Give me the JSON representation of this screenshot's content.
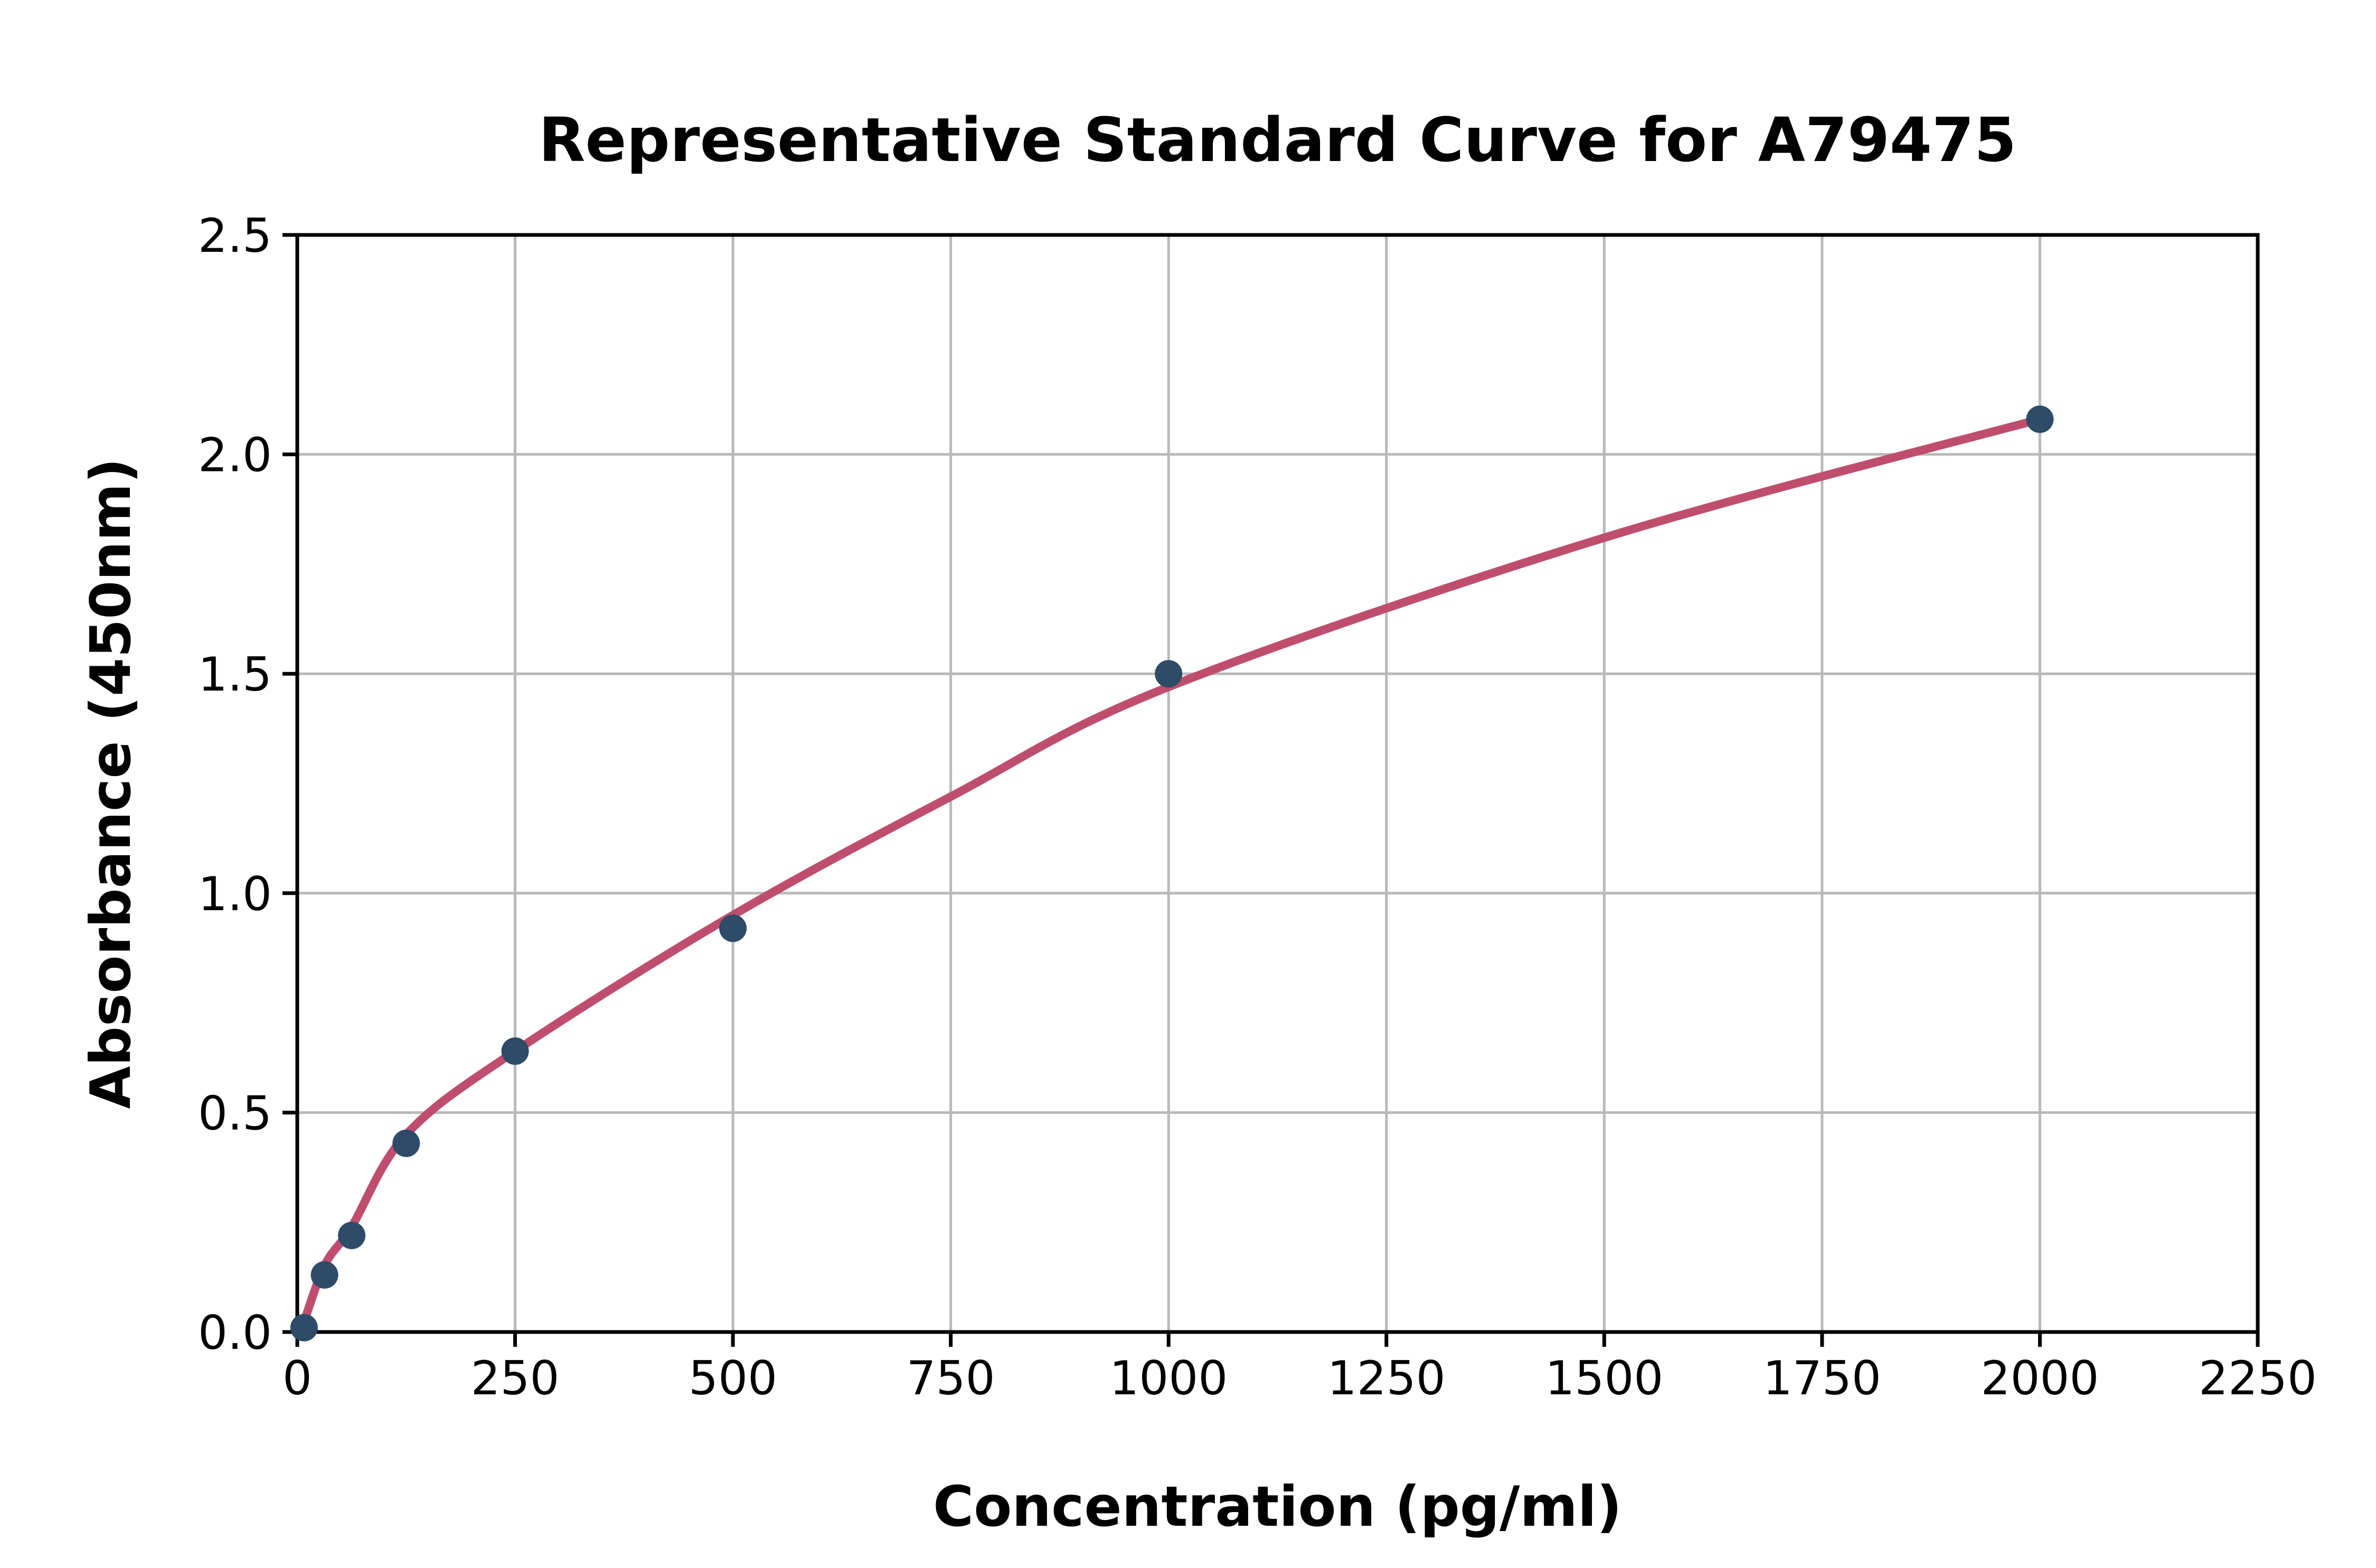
{
  "chart_data": {
    "type": "scatter",
    "title": "Representative Standard Curve for A79475",
    "xlabel": "Concentration (pg/ml)",
    "ylabel": "Absorbance (450nm)",
    "xlim": [
      0,
      2250
    ],
    "ylim": [
      0,
      2.5
    ],
    "grid": true,
    "legend": "none",
    "xticks": [
      0,
      250,
      500,
      750,
      1000,
      1250,
      1500,
      1750,
      2000,
      2250
    ],
    "xtick_labels": [
      "0",
      "250",
      "500",
      "750",
      "1000",
      "1250",
      "1500",
      "1750",
      "2000",
      "2250"
    ],
    "yticks": [
      0.0,
      0.5,
      1.0,
      1.5,
      2.0,
      2.5
    ],
    "ytick_labels": [
      "0.0",
      "0.5",
      "1.0",
      "1.5",
      "2.0",
      "2.5"
    ],
    "series": [
      {
        "name": "standards",
        "points": [
          {
            "x": 7.8,
            "y": 0.01
          },
          {
            "x": 31.25,
            "y": 0.13
          },
          {
            "x": 62.5,
            "y": 0.22
          },
          {
            "x": 125,
            "y": 0.43
          },
          {
            "x": 250,
            "y": 0.64
          },
          {
            "x": 500,
            "y": 0.92
          },
          {
            "x": 1000,
            "y": 1.5
          },
          {
            "x": 2000,
            "y": 2.08
          }
        ]
      }
    ],
    "fit_curve_points": [
      [
        4,
        0.0
      ],
      [
        31,
        0.15
      ],
      [
        62.5,
        0.24
      ],
      [
        125,
        0.45
      ],
      [
        250,
        0.64
      ],
      [
        500,
        0.95
      ],
      [
        750,
        1.22
      ],
      [
        1000,
        1.47
      ],
      [
        1500,
        1.81
      ],
      [
        2000,
        2.08
      ]
    ],
    "colors": {
      "point": "#2e4b68",
      "curve": "#bf4e6e",
      "grid": "#b9b9b9",
      "spine": "#000000",
      "text": "#000000",
      "background": "#ffffff"
    }
  }
}
